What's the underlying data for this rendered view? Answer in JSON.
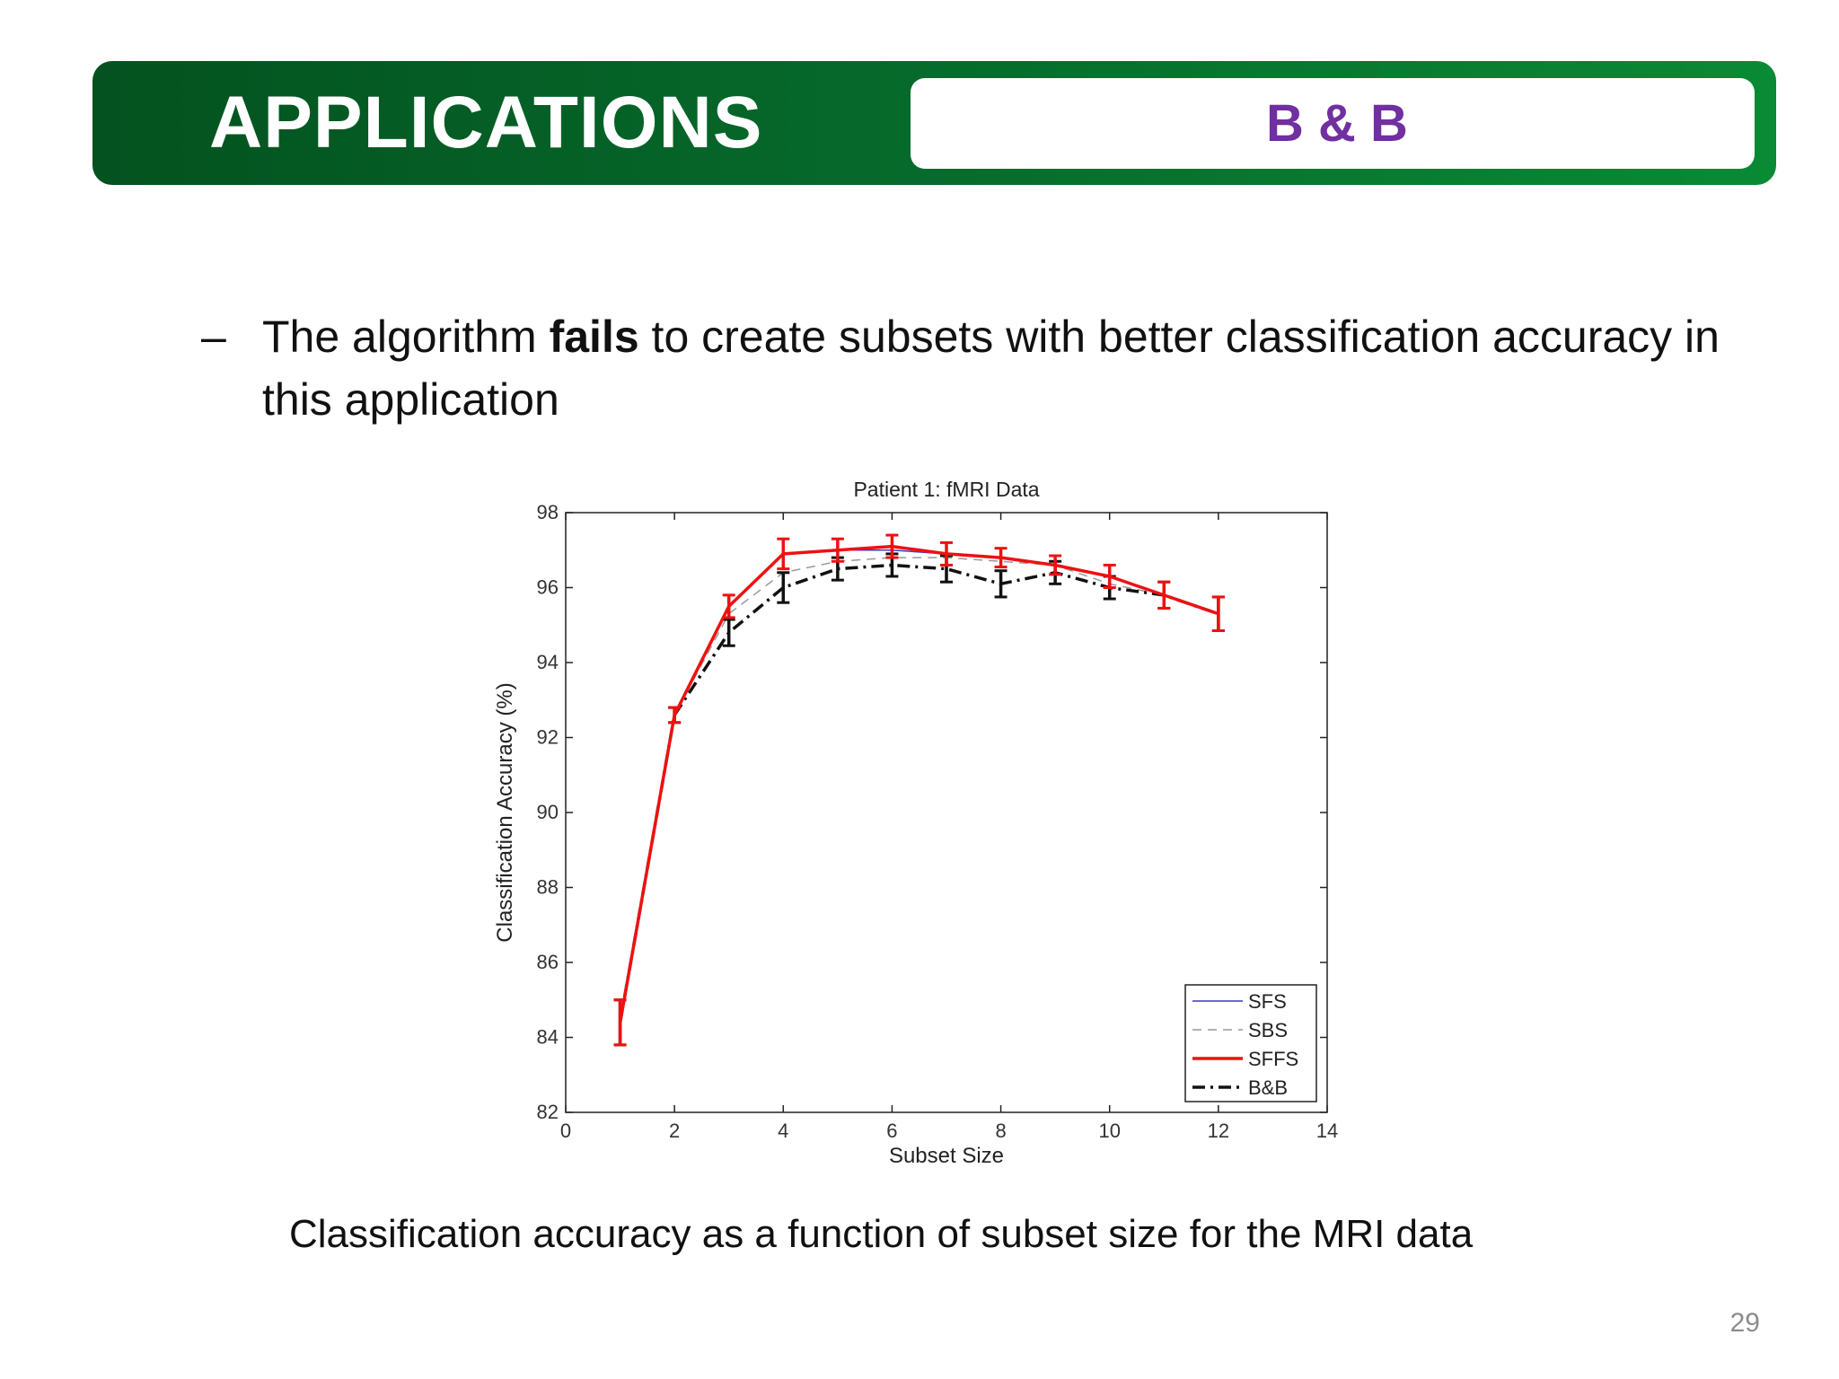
{
  "header": {
    "title": "APPLICATIONS",
    "subtitle": "B & B"
  },
  "bullet": {
    "dash": "–",
    "text_before": "The algorithm ",
    "text_bold": "fails",
    "text_after": " to create subsets with better classification accuracy in this application"
  },
  "caption": "Classification accuracy as a function of subset size for the MRI data",
  "page_number": "29",
  "colors": {
    "banner_green": "#066b2c",
    "subtitle_purple": "#7030a0"
  },
  "chart_data": {
    "type": "line",
    "title": "Patient 1: fMRI Data",
    "xlabel": "Subset Size",
    "ylabel": "Classification Accuracy (%)",
    "xlim": [
      0,
      14
    ],
    "ylim": [
      82,
      98
    ],
    "xticks": [
      0,
      2,
      4,
      6,
      8,
      10,
      12,
      14
    ],
    "yticks": [
      82,
      84,
      86,
      88,
      90,
      92,
      94,
      96,
      98
    ],
    "grid": false,
    "legend_position": "bottom-right",
    "series": [
      {
        "name": "SFS",
        "color": "#3a3acc",
        "style": "solid",
        "x": [
          1,
          2,
          3,
          4,
          5,
          6,
          7,
          8,
          9,
          10,
          11,
          12
        ],
        "y": [
          84.4,
          92.6,
          95.5,
          96.9,
          97.0,
          97.0,
          96.9,
          96.8,
          96.6,
          96.3,
          95.8,
          95.3
        ]
      },
      {
        "name": "SBS",
        "color": "#999999",
        "style": "dashed",
        "x": [
          1,
          2,
          3,
          4,
          5,
          6,
          7,
          8,
          9,
          10,
          11,
          12
        ],
        "y": [
          84.4,
          92.6,
          95.3,
          96.4,
          96.7,
          96.8,
          96.8,
          96.7,
          96.6,
          96.1,
          95.8,
          95.3
        ]
      },
      {
        "name": "SFFS",
        "color": "#ee1111",
        "style": "solid-thick",
        "x": [
          1,
          2,
          3,
          4,
          5,
          6,
          7,
          8,
          9,
          10,
          11,
          12
        ],
        "y": [
          84.4,
          92.6,
          95.5,
          96.9,
          97.0,
          97.1,
          96.9,
          96.8,
          96.6,
          96.3,
          95.8,
          95.3
        ],
        "err": [
          0.6,
          0.2,
          0.3,
          0.4,
          0.3,
          0.3,
          0.3,
          0.25,
          0.25,
          0.3,
          0.35,
          0.45
        ]
      },
      {
        "name": "B&B",
        "color": "#111111",
        "style": "dashdot",
        "x": [
          1,
          2,
          3,
          4,
          5,
          6,
          7,
          8,
          9,
          10,
          11,
          12
        ],
        "y": [
          84.4,
          92.6,
          94.8,
          96.0,
          96.5,
          96.6,
          96.5,
          96.1,
          96.4,
          96.0,
          95.8,
          95.3
        ],
        "err": [
          0.6,
          0.2,
          0.35,
          0.4,
          0.3,
          0.3,
          0.35,
          0.35,
          0.3,
          0.3,
          0.35,
          0.45
        ]
      }
    ]
  }
}
